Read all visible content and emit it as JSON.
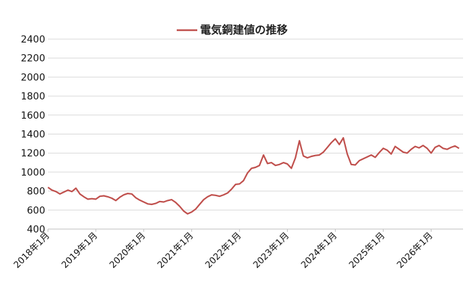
{
  "chart_data": {
    "type": "line",
    "title": "",
    "xlabel": "",
    "ylabel": "",
    "legend": {
      "position": "top-center",
      "entries": [
        "電気銅建値の推移"
      ]
    },
    "grid": {
      "horizontal": true,
      "vertical": false
    },
    "ylim": [
      400,
      2400
    ],
    "yticks": [
      400,
      600,
      800,
      1000,
      1200,
      1400,
      1600,
      1800,
      2000,
      2200,
      2400
    ],
    "xlim": [
      "2018-01",
      "2026-09"
    ],
    "xticks": [
      "2018年1月",
      "2019年1月",
      "2020年1月",
      "2021年1月",
      "2022年1月",
      "2023年1月",
      "2024年1月",
      "2025年1月",
      "2026年1月"
    ],
    "colors": {
      "series": "#C0504D",
      "grid": "#D9D9D9",
      "axis": "#BFBFBF"
    },
    "series": [
      {
        "name": "電気銅建値の推移",
        "points": [
          [
            "2018-01",
            840
          ],
          [
            "2018-02",
            810
          ],
          [
            "2018-03",
            795
          ],
          [
            "2018-04",
            770
          ],
          [
            "2018-05",
            790
          ],
          [
            "2018-06",
            810
          ],
          [
            "2018-07",
            795
          ],
          [
            "2018-08",
            830
          ],
          [
            "2018-09",
            770
          ],
          [
            "2018-10",
            740
          ],
          [
            "2018-11",
            715
          ],
          [
            "2018-12",
            720
          ],
          [
            "2019-01",
            715
          ],
          [
            "2019-02",
            745
          ],
          [
            "2019-03",
            750
          ],
          [
            "2019-04",
            740
          ],
          [
            "2019-05",
            725
          ],
          [
            "2019-06",
            700
          ],
          [
            "2019-07",
            735
          ],
          [
            "2019-08",
            760
          ],
          [
            "2019-09",
            775
          ],
          [
            "2019-10",
            770
          ],
          [
            "2019-11",
            730
          ],
          [
            "2019-12",
            705
          ],
          [
            "2020-01",
            685
          ],
          [
            "2020-02",
            665
          ],
          [
            "2020-03",
            660
          ],
          [
            "2020-04",
            670
          ],
          [
            "2020-05",
            690
          ],
          [
            "2020-06",
            685
          ],
          [
            "2020-07",
            700
          ],
          [
            "2020-08",
            710
          ],
          [
            "2020-09",
            680
          ],
          [
            "2020-10",
            640
          ],
          [
            "2020-11",
            590
          ],
          [
            "2020-12",
            560
          ],
          [
            "2021-01",
            580
          ],
          [
            "2021-02",
            610
          ],
          [
            "2021-03",
            660
          ],
          [
            "2021-04",
            710
          ],
          [
            "2021-05",
            740
          ],
          [
            "2021-06",
            760
          ],
          [
            "2021-07",
            755
          ],
          [
            "2021-08",
            745
          ],
          [
            "2021-09",
            760
          ],
          [
            "2021-10",
            780
          ],
          [
            "2021-11",
            820
          ],
          [
            "2021-12",
            870
          ],
          [
            "2022-01",
            875
          ],
          [
            "2022-02",
            910
          ],
          [
            "2022-03",
            990
          ],
          [
            "2022-04",
            1040
          ],
          [
            "2022-05",
            1050
          ],
          [
            "2022-06",
            1070
          ],
          [
            "2022-07",
            1180
          ],
          [
            "2022-08",
            1090
          ],
          [
            "2022-09",
            1100
          ],
          [
            "2022-10",
            1070
          ],
          [
            "2022-11",
            1080
          ],
          [
            "2022-12",
            1100
          ],
          [
            "2023-01",
            1085
          ],
          [
            "2023-02",
            1040
          ],
          [
            "2023-03",
            1150
          ],
          [
            "2023-04",
            1330
          ],
          [
            "2023-05",
            1170
          ],
          [
            "2023-06",
            1150
          ],
          [
            "2023-07",
            1165
          ],
          [
            "2023-08",
            1175
          ],
          [
            "2023-09",
            1180
          ],
          [
            "2023-10",
            1210
          ],
          [
            "2023-11",
            1260
          ],
          [
            "2023-12",
            1310
          ],
          [
            "2024-01",
            1350
          ],
          [
            "2024-02",
            1290
          ],
          [
            "2024-03",
            1360
          ],
          [
            "2024-04",
            1190
          ],
          [
            "2024-05",
            1080
          ],
          [
            "2024-06",
            1075
          ],
          [
            "2024-07",
            1120
          ],
          [
            "2024-08",
            1140
          ],
          [
            "2024-09",
            1160
          ],
          [
            "2024-10",
            1180
          ],
          [
            "2024-11",
            1155
          ],
          [
            "2024-12",
            1205
          ],
          [
            "2025-01",
            1250
          ],
          [
            "2025-02",
            1230
          ],
          [
            "2025-03",
            1190
          ],
          [
            "2025-04",
            1270
          ],
          [
            "2025-05",
            1240
          ],
          [
            "2025-06",
            1210
          ],
          [
            "2025-07",
            1200
          ],
          [
            "2025-08",
            1240
          ],
          [
            "2025-09",
            1270
          ],
          [
            "2025-10",
            1255
          ],
          [
            "2025-11",
            1280
          ],
          [
            "2025-12",
            1250
          ],
          [
            "2026-01",
            1200
          ],
          [
            "2026-02",
            1260
          ],
          [
            "2026-03",
            1280
          ],
          [
            "2026-04",
            1250
          ],
          [
            "2026-05",
            1240
          ],
          [
            "2026-06",
            1260
          ],
          [
            "2026-07",
            1275
          ],
          [
            "2026-08",
            1250
          ]
        ]
      }
    ]
  }
}
